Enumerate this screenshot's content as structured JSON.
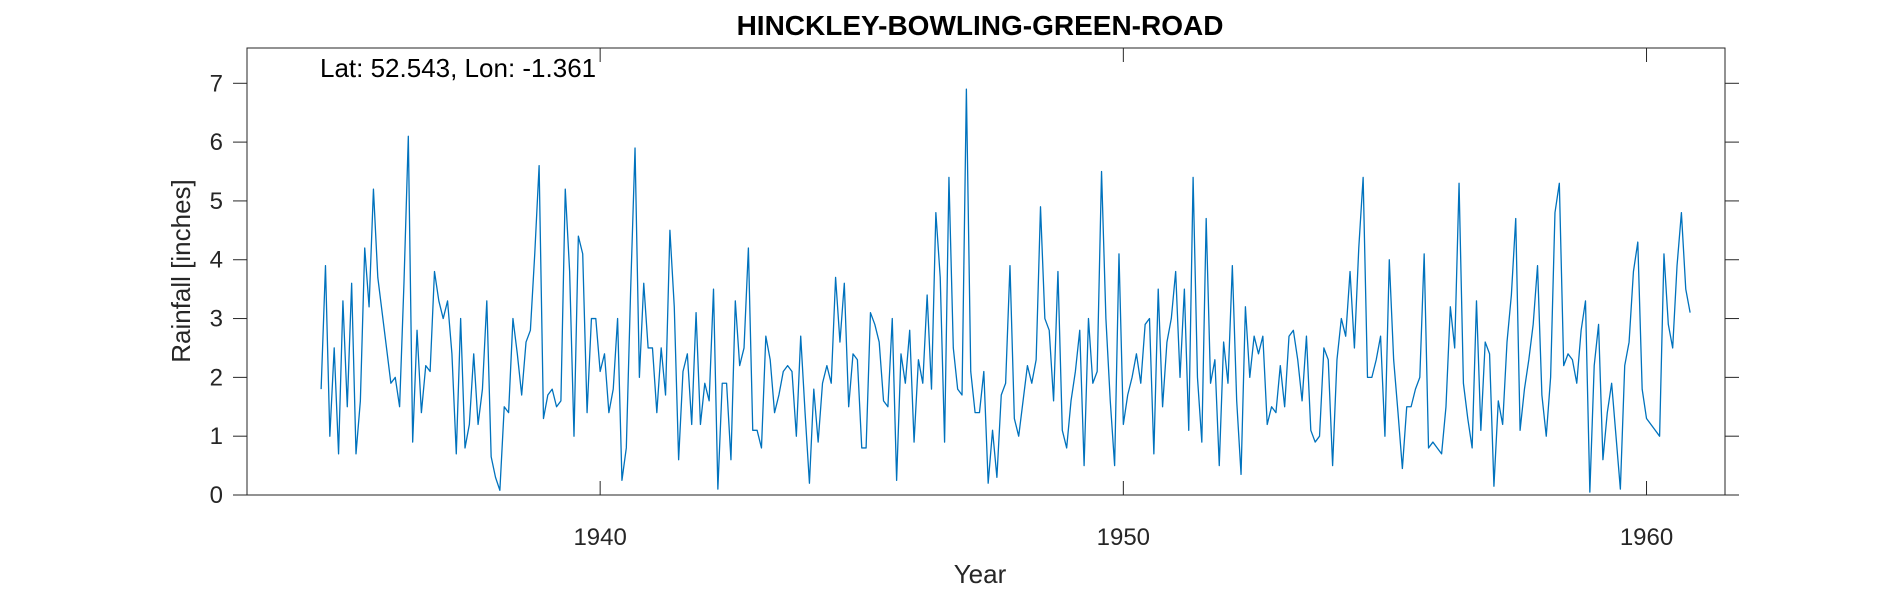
{
  "chart_data": {
    "type": "line",
    "title": "HINCKLEY-BOWLING-GREEN-ROAD",
    "annotation": "Lat: 52.543, Lon: -1.361",
    "xlabel": "Year",
    "ylabel": "Rainfall [inches]",
    "xlim": [
      1933.25,
      1961.5
    ],
    "ylim": [
      0,
      7.6
    ],
    "x_ticks": [
      1940,
      1950,
      1960
    ],
    "y_ticks": [
      0,
      1,
      2,
      3,
      4,
      5,
      6,
      7
    ],
    "grid": false,
    "line_color": "#0072BD",
    "x_start": 1934.6667,
    "x_step_months": 1,
    "series": [
      {
        "values": [
          1.8,
          3.9,
          1.0,
          2.5,
          0.7,
          3.3,
          1.5,
          3.6,
          0.7,
          1.6,
          4.2,
          3.2,
          5.2,
          3.7,
          3.1,
          2.5,
          1.9,
          2.0,
          1.5,
          3.6,
          6.1,
          0.9,
          2.8,
          1.4,
          2.2,
          2.1,
          3.8,
          3.3,
          3.0,
          3.3,
          2.4,
          0.7,
          3.0,
          0.8,
          1.2,
          2.4,
          1.2,
          1.8,
          3.3,
          0.65,
          0.3,
          0.08,
          1.5,
          1.4,
          3.0,
          2.4,
          1.7,
          2.6,
          2.8,
          4.1,
          5.6,
          1.3,
          1.7,
          1.8,
          1.5,
          1.6,
          5.2,
          3.8,
          1.0,
          4.4,
          4.1,
          1.4,
          3.0,
          3.0,
          2.1,
          2.4,
          1.4,
          1.8,
          3.0,
          0.25,
          0.8,
          3.5,
          5.9,
          2.0,
          3.6,
          2.5,
          2.5,
          1.4,
          2.5,
          1.7,
          4.5,
          3.2,
          0.6,
          2.1,
          2.4,
          1.2,
          3.1,
          1.2,
          1.9,
          1.6,
          3.5,
          0.1,
          1.9,
          1.9,
          0.6,
          3.3,
          2.2,
          2.5,
          4.2,
          1.1,
          1.1,
          0.8,
          2.7,
          2.3,
          1.4,
          1.7,
          2.1,
          2.2,
          2.1,
          1.0,
          2.7,
          1.4,
          0.2,
          1.8,
          0.9,
          1.9,
          2.2,
          1.9,
          3.7,
          2.6,
          3.6,
          1.5,
          2.4,
          2.3,
          0.8,
          0.8,
          3.1,
          2.9,
          2.6,
          1.6,
          1.5,
          3.0,
          0.25,
          2.4,
          1.9,
          2.8,
          0.9,
          2.3,
          1.9,
          3.4,
          1.8,
          4.8,
          3.7,
          0.9,
          5.4,
          2.5,
          1.8,
          1.7,
          6.9,
          2.1,
          1.4,
          1.4,
          2.1,
          0.2,
          1.1,
          0.3,
          1.7,
          1.9,
          3.9,
          1.3,
          1.0,
          1.6,
          2.2,
          1.9,
          2.3,
          4.9,
          3.0,
          2.8,
          1.6,
          3.8,
          1.1,
          0.8,
          1.6,
          2.1,
          2.8,
          0.5,
          3.0,
          1.9,
          2.1,
          5.5,
          3.0,
          1.6,
          0.5,
          4.1,
          1.2,
          1.7,
          2.0,
          2.4,
          1.9,
          2.9,
          3.0,
          0.7,
          3.5,
          1.5,
          2.6,
          3.0,
          3.8,
          2.0,
          3.5,
          1.1,
          5.4,
          2.0,
          0.9,
          4.7,
          1.9,
          2.3,
          0.5,
          2.6,
          1.9,
          3.9,
          1.6,
          0.35,
          3.2,
          2.0,
          2.7,
          2.4,
          2.7,
          1.2,
          1.5,
          1.4,
          2.2,
          1.5,
          2.7,
          2.8,
          2.3,
          1.6,
          2.7,
          1.1,
          0.9,
          1.0,
          2.5,
          2.3,
          0.5,
          2.3,
          3.0,
          2.7,
          3.8,
          2.5,
          4.2,
          5.4,
          2.0,
          2.0,
          2.3,
          2.7,
          1.0,
          4.0,
          2.3,
          1.4,
          0.45,
          1.5,
          1.5,
          1.8,
          2.0,
          4.1,
          0.8,
          0.9,
          0.8,
          0.7,
          1.5,
          3.2,
          2.5,
          5.3,
          1.9,
          1.3,
          0.8,
          3.3,
          1.1,
          2.6,
          2.4,
          0.15,
          1.6,
          1.2,
          2.6,
          3.4,
          4.7,
          1.1,
          1.8,
          2.3,
          2.9,
          3.9,
          1.7,
          1.0,
          2.0,
          4.8,
          5.3,
          2.2,
          2.4,
          2.3,
          1.9,
          2.8,
          3.3,
          0.05,
          2.2,
          2.9,
          0.6,
          1.4,
          1.9,
          1.0,
          0.1,
          2.2,
          2.6,
          3.8,
          4.3,
          1.8,
          1.3,
          1.2,
          1.1,
          1.0,
          4.1,
          2.9,
          2.5,
          3.9,
          4.8,
          3.5,
          3.1
        ]
      }
    ]
  }
}
